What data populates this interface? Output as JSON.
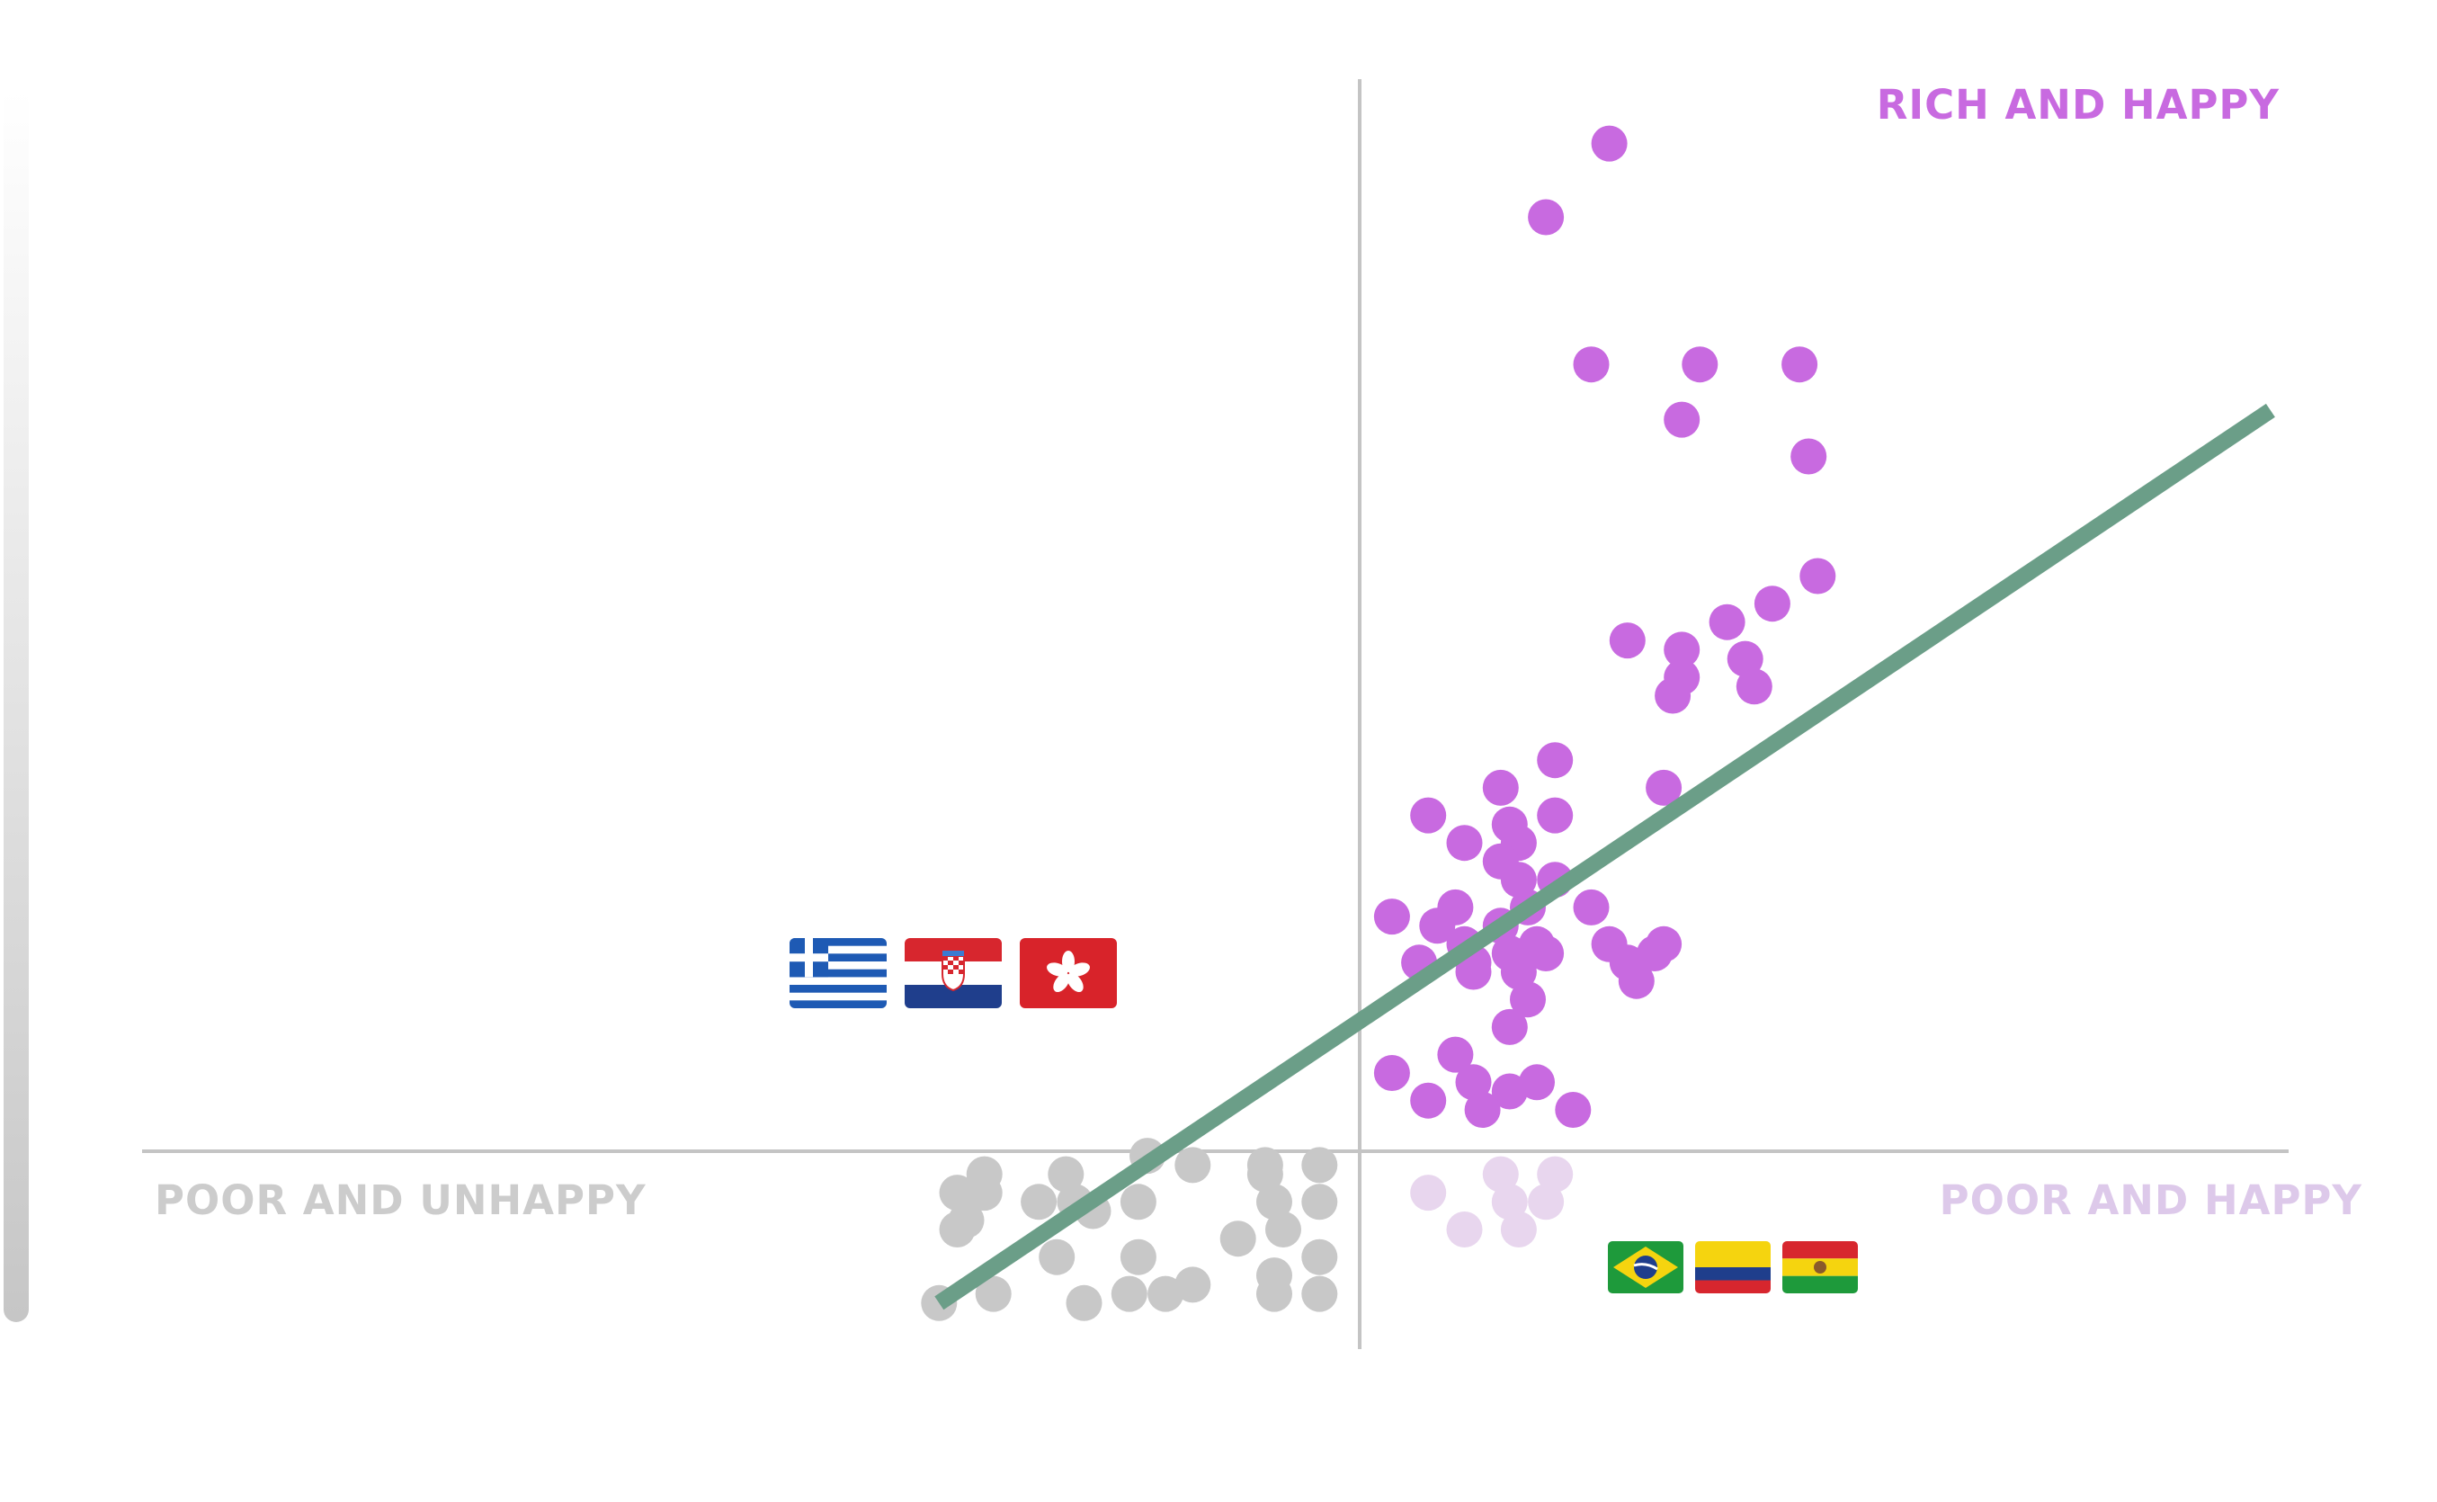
{
  "chart_data": {
    "type": "scatter",
    "title": "",
    "xlabel": "",
    "ylabel": "",
    "grid": false,
    "legend": "none",
    "xlim": [
      -13.4,
      10.3
    ],
    "ylim": [
      -2.2,
      11.6
    ],
    "quadrant_labels": {
      "rich_and_happy": "RICH AND HAPPY",
      "poor_and_unhappy": "POOR AND UNHAPPY",
      "poor_and_happy": "POOR AND HAPPY"
    },
    "colors": {
      "rich_and_happy": "#c86ae0",
      "poor_and_unhappy": "#c8c8c8",
      "poor_and_happy": "#e8d6ee",
      "trend": "#6b9e88",
      "axis": "#c4c4c4",
      "label_grey": "#cccccc",
      "label_light": "#ddc9ea"
    },
    "trend_line": {
      "x": [
        -4.6,
        10.1
      ],
      "y": [
        -1.7,
        8.0
      ]
    },
    "flag_groups": {
      "upper_left": [
        "flag-greece",
        "flag-croatia",
        "flag-hong-kong"
      ],
      "lower_right": [
        "flag-brazil",
        "flag-colombia",
        "flag-bolivia"
      ]
    },
    "series": [
      {
        "key": "rich_and_happy",
        "points": [
          [
            2.8,
            10.9
          ],
          [
            2.1,
            10.1
          ],
          [
            2.6,
            8.5
          ],
          [
            3.8,
            8.5
          ],
          [
            4.9,
            8.5
          ],
          [
            3.6,
            7.9
          ],
          [
            5.0,
            7.5
          ],
          [
            5.1,
            6.2
          ],
          [
            4.6,
            5.9
          ],
          [
            4.1,
            5.7
          ],
          [
            3.0,
            5.5
          ],
          [
            3.6,
            5.4
          ],
          [
            4.3,
            5.3
          ],
          [
            3.6,
            5.1
          ],
          [
            4.4,
            5.0
          ],
          [
            3.5,
            4.9
          ],
          [
            2.2,
            4.2
          ],
          [
            1.6,
            3.9
          ],
          [
            3.4,
            3.9
          ],
          [
            0.8,
            3.6
          ],
          [
            2.2,
            3.6
          ],
          [
            1.7,
            3.5
          ],
          [
            1.2,
            3.3
          ],
          [
            1.8,
            3.3
          ],
          [
            1.6,
            3.1
          ],
          [
            1.8,
            2.9
          ],
          [
            2.2,
            2.9
          ],
          [
            1.1,
            2.6
          ],
          [
            1.9,
            2.6
          ],
          [
            2.6,
            2.6
          ],
          [
            0.4,
            2.5
          ],
          [
            0.9,
            2.4
          ],
          [
            1.6,
            2.4
          ],
          [
            1.2,
            2.2
          ],
          [
            2.0,
            2.2
          ],
          [
            2.8,
            2.2
          ],
          [
            3.4,
            2.2
          ],
          [
            1.7,
            2.1
          ],
          [
            2.1,
            2.1
          ],
          [
            0.7,
            2.0
          ],
          [
            1.3,
            2.0
          ],
          [
            3.0,
            2.0
          ],
          [
            3.3,
            2.1
          ],
          [
            1.3,
            1.9
          ],
          [
            1.8,
            1.9
          ],
          [
            3.1,
            1.8
          ],
          [
            1.9,
            1.6
          ],
          [
            1.7,
            1.3
          ],
          [
            1.1,
            1.0
          ],
          [
            0.4,
            0.8
          ],
          [
            1.3,
            0.7
          ],
          [
            2.0,
            0.7
          ],
          [
            1.7,
            0.6
          ],
          [
            0.8,
            0.5
          ],
          [
            1.4,
            0.4
          ],
          [
            2.4,
            0.4
          ]
        ]
      },
      {
        "key": "poor_and_unhappy",
        "points": [
          [
            -2.3,
            -0.1
          ],
          [
            -1.8,
            -0.2
          ],
          [
            -1.0,
            -0.2
          ],
          [
            -0.4,
            -0.2
          ],
          [
            -4.1,
            -0.3
          ],
          [
            -3.2,
            -0.3
          ],
          [
            -1.0,
            -0.3
          ],
          [
            -4.4,
            -0.5
          ],
          [
            -4.1,
            -0.5
          ],
          [
            -3.5,
            -0.6
          ],
          [
            -3.1,
            -0.6
          ],
          [
            -2.4,
            -0.6
          ],
          [
            -0.9,
            -0.6
          ],
          [
            -0.4,
            -0.6
          ],
          [
            -2.9,
            -0.7
          ],
          [
            -4.3,
            -0.8
          ],
          [
            -4.4,
            -0.9
          ],
          [
            -0.8,
            -0.9
          ],
          [
            -1.3,
            -1.0
          ],
          [
            -3.3,
            -1.2
          ],
          [
            -2.4,
            -1.2
          ],
          [
            -0.4,
            -1.2
          ],
          [
            -0.9,
            -1.4
          ],
          [
            -1.8,
            -1.5
          ],
          [
            -4.0,
            -1.6
          ],
          [
            -2.5,
            -1.6
          ],
          [
            -2.1,
            -1.6
          ],
          [
            -0.9,
            -1.6
          ],
          [
            -0.4,
            -1.6
          ],
          [
            -4.6,
            -1.7
          ],
          [
            -3.0,
            -1.7
          ]
        ]
      },
      {
        "key": "poor_and_happy",
        "points": [
          [
            1.6,
            -0.3
          ],
          [
            2.2,
            -0.3
          ],
          [
            0.8,
            -0.5
          ],
          [
            1.7,
            -0.6
          ],
          [
            2.1,
            -0.6
          ],
          [
            1.2,
            -0.9
          ],
          [
            1.8,
            -0.9
          ]
        ]
      }
    ]
  }
}
